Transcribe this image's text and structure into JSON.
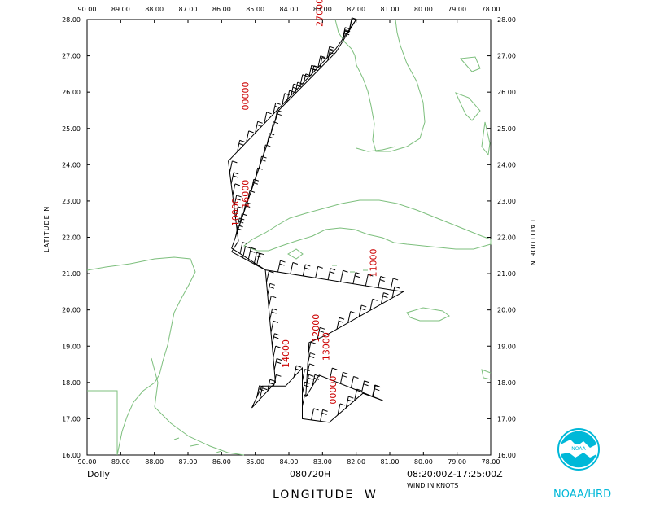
{
  "map": {
    "lon_ticks": [
      "90.00",
      "89.00",
      "88.00",
      "87.00",
      "86.00",
      "85.00",
      "84.00",
      "83.00",
      "82.00",
      "81.00",
      "80.00",
      "79.00",
      "78.00"
    ],
    "lat_ticks": [
      "16.00",
      "17.00",
      "18.00",
      "19.00",
      "20.00",
      "21.00",
      "22.00",
      "23.00",
      "24.00",
      "25.00",
      "26.00",
      "27.00",
      "28.00"
    ],
    "lon_range": [
      -90,
      -78
    ],
    "lat_range": [
      16,
      28
    ],
    "xlabel": "LONGITUDE",
    "xlabel_suffix": "W",
    "ylabel_left": "LATITUDE  N",
    "ylabel_right": "LATITUDE  N",
    "coast_color": "#7dbf7d",
    "track_color": "#000000",
    "label_color": "#cc0000"
  },
  "footer": {
    "storm": "Dolly",
    "flight_id": "080720H",
    "time_range": "08:20:00Z-17:25:00Z",
    "units": "WIND IN KNOTS",
    "agency": "NOAA/HRD",
    "logo_icon": "noaa-logo-icon"
  },
  "flight_track": [
    [
      -82.0,
      28.0
    ],
    [
      -82.6,
      27.2
    ],
    [
      -85.8,
      24.1
    ],
    [
      -85.5,
      21.9
    ],
    [
      -85.7,
      21.6
    ],
    [
      -84.7,
      21.1
    ],
    [
      -80.6,
      20.5
    ],
    [
      -82.9,
      19.3
    ],
    [
      -83.4,
      19.1
    ],
    [
      -83.5,
      17.6
    ],
    [
      -83.1,
      18.2
    ],
    [
      -81.2,
      17.5
    ],
    [
      -81.8,
      17.7
    ],
    [
      -82.8,
      16.9
    ],
    [
      -83.6,
      17.0
    ],
    [
      -83.6,
      18.4
    ],
    [
      -84.1,
      17.9
    ],
    [
      -84.8,
      17.9
    ],
    [
      -85.1,
      17.3
    ],
    [
      -84.4,
      18.0
    ],
    [
      -84.7,
      21.1
    ],
    [
      -85.7,
      21.7
    ],
    [
      -84.3,
      25.5
    ],
    [
      -82.6,
      27.1
    ],
    [
      -82.0,
      28.0
    ]
  ],
  "altitude_labels": [
    {
      "text": "27000",
      "lon": -83.0,
      "lat": 27.8
    },
    {
      "text": "00000",
      "lon": -85.2,
      "lat": 25.5
    },
    {
      "text": "16000",
      "lon": -85.2,
      "lat": 22.8
    },
    {
      "text": "10000",
      "lon": -85.5,
      "lat": 22.3
    },
    {
      "text": "11000",
      "lon": -81.4,
      "lat": 20.9
    },
    {
      "text": "12000",
      "lon": -83.1,
      "lat": 19.1
    },
    {
      "text": "13000",
      "lon": -82.8,
      "lat": 18.6
    },
    {
      "text": "14000",
      "lon": -84.0,
      "lat": 18.4
    },
    {
      "text": "00000",
      "lon": -82.6,
      "lat": 17.4
    }
  ]
}
